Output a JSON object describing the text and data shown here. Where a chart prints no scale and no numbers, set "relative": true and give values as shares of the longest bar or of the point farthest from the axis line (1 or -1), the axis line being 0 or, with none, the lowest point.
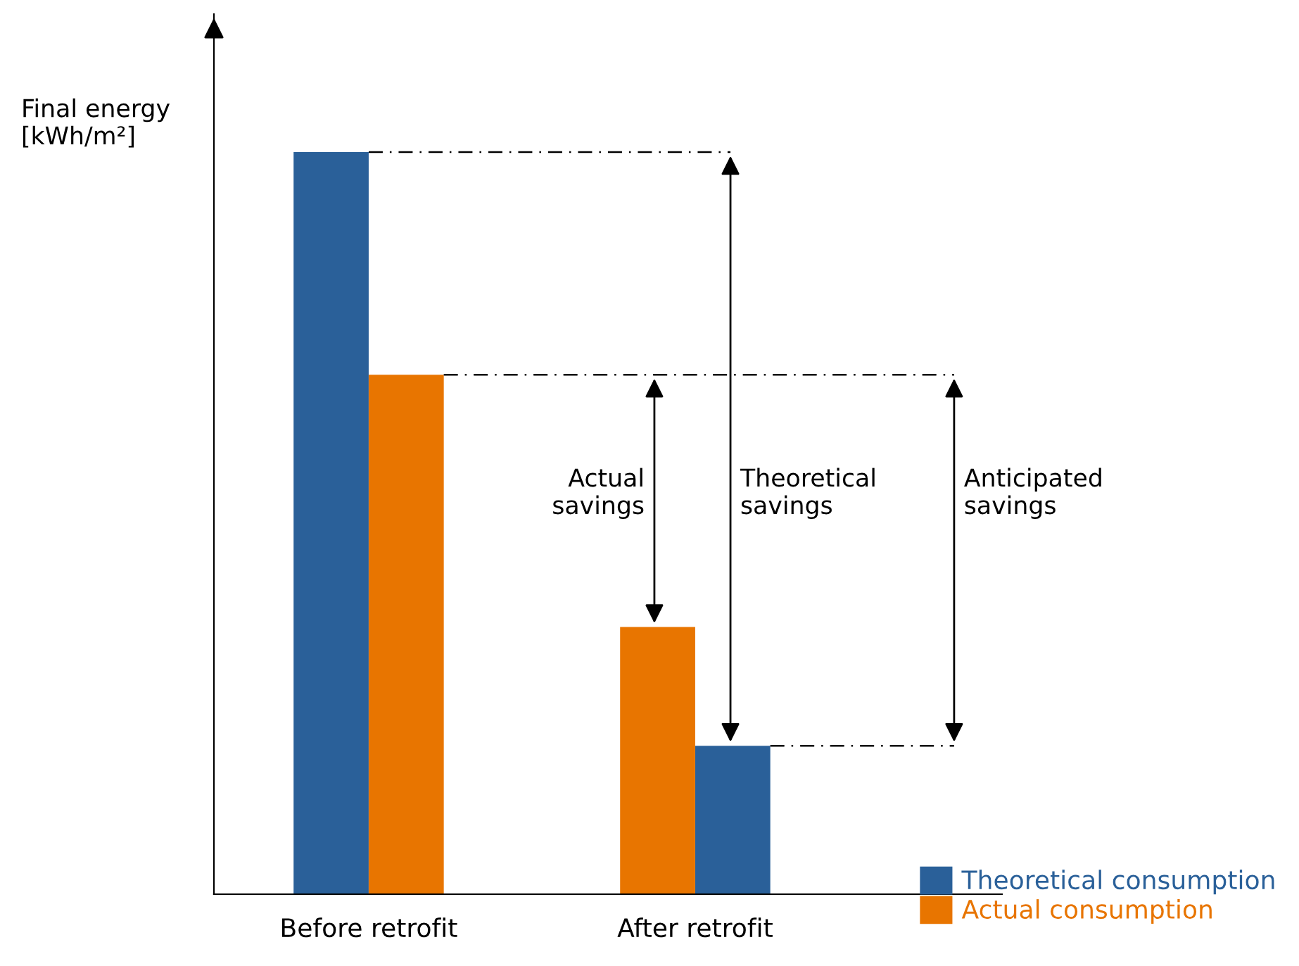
{
  "chart_data": {
    "type": "bar",
    "relative": true,
    "ylabel": "Final energy\n[kWh/m²]",
    "categories": [
      "Before retrofit",
      "After retrofit"
    ],
    "series": [
      {
        "name": "Theoretical consumption",
        "color": "#2a6099",
        "values": [
          1,
          0.2
        ]
      },
      {
        "name": "Actual consumption",
        "color": "#e87500",
        "values": [
          0.7,
          0.36
        ]
      }
    ],
    "annotations": [
      "Actual\nsavings",
      "Theoretical\nsavings",
      "Anticipated\nsavings"
    ],
    "ref_lines": [
      {
        "axis": "y",
        "value": 1,
        "color": "#000000"
      },
      {
        "axis": "y",
        "value": 0.7,
        "color": "#000000"
      },
      {
        "axis": "y",
        "value": 0.2,
        "color": "#000000"
      }
    ],
    "legend": "bottom right",
    "grid": false
  }
}
